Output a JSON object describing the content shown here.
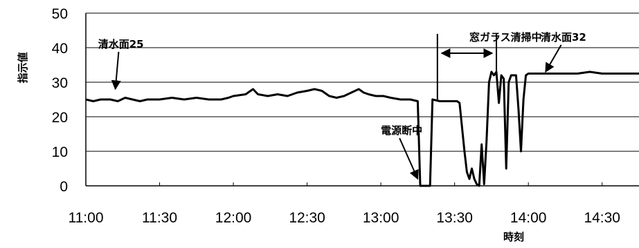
{
  "chart_data": {
    "type": "line",
    "title": "",
    "xlabel": "時刻",
    "ylabel": "指示値",
    "ylim": [
      0,
      50
    ],
    "yticks": [
      0,
      10,
      20,
      30,
      40,
      50
    ],
    "xlim_minutes": [
      660,
      885
    ],
    "xticks": [
      "11:00",
      "11:30",
      "12:00",
      "12:30",
      "13:00",
      "13:30",
      "14:00",
      "14:30"
    ],
    "grid": "horizontal",
    "legend": "none",
    "series": [
      {
        "color": "#000000",
        "points": [
          [
            "11:00",
            25
          ],
          [
            "11:03",
            24.5
          ],
          [
            "11:06",
            25
          ],
          [
            "11:10",
            25
          ],
          [
            "11:13",
            24.5
          ],
          [
            "11:16",
            25.5
          ],
          [
            "11:19",
            25
          ],
          [
            "11:22",
            24.5
          ],
          [
            "11:25",
            25
          ],
          [
            "11:30",
            25
          ],
          [
            "11:35",
            25.5
          ],
          [
            "11:40",
            25
          ],
          [
            "11:45",
            25.5
          ],
          [
            "11:50",
            25
          ],
          [
            "11:55",
            25
          ],
          [
            "11:58",
            25.5
          ],
          [
            "12:00",
            26
          ],
          [
            "12:05",
            26.5
          ],
          [
            "12:08",
            28
          ],
          [
            "12:10",
            26.5
          ],
          [
            "12:14",
            26
          ],
          [
            "12:18",
            26.5
          ],
          [
            "12:22",
            26
          ],
          [
            "12:26",
            27
          ],
          [
            "12:30",
            27.5
          ],
          [
            "12:33",
            28
          ],
          [
            "12:36",
            27.5
          ],
          [
            "12:39",
            26
          ],
          [
            "12:42",
            25.5
          ],
          [
            "12:45",
            26
          ],
          [
            "12:48",
            27
          ],
          [
            "12:51",
            28
          ],
          [
            "12:53",
            27
          ],
          [
            "12:55",
            26.5
          ],
          [
            "12:58",
            26
          ],
          [
            "13:01",
            26
          ],
          [
            "13:04",
            25.5
          ],
          [
            "13:08",
            25
          ],
          [
            "13:12",
            25
          ],
          [
            "13:15",
            24.5
          ],
          [
            "13:16",
            0
          ],
          [
            "13:20",
            0
          ],
          [
            "13:21",
            25
          ],
          [
            "13:24",
            24.5
          ],
          [
            "13:28",
            24.5
          ],
          [
            "13:31",
            24.5
          ],
          [
            "13:32",
            24
          ],
          [
            "13:34",
            10
          ],
          [
            "13:35",
            4
          ],
          [
            "13:36",
            2
          ],
          [
            "13:37",
            5
          ],
          [
            "13:38",
            2
          ],
          [
            "13:39",
            0.5
          ],
          [
            "13:40",
            0
          ],
          [
            "13:41",
            12
          ],
          [
            "13:42",
            0.5
          ],
          [
            "13:43",
            13
          ],
          [
            "13:44",
            30
          ],
          [
            "13:45",
            33
          ],
          [
            "13:46",
            32
          ],
          [
            "13:47",
            33
          ],
          [
            "13:48",
            24
          ],
          [
            "13:49",
            32
          ],
          [
            "13:50",
            31
          ],
          [
            "13:51",
            5
          ],
          [
            "13:52",
            30
          ],
          [
            "13:53",
            32
          ],
          [
            "13:55",
            32
          ],
          [
            "13:56",
            22
          ],
          [
            "13:57",
            10
          ],
          [
            "13:58",
            25
          ],
          [
            "13:59",
            32
          ],
          [
            "14:00",
            32.5
          ],
          [
            "14:05",
            32.5
          ],
          [
            "14:10",
            32.5
          ],
          [
            "14:15",
            32.5
          ],
          [
            "14:20",
            32.5
          ],
          [
            "14:25",
            33
          ],
          [
            "14:30",
            32.5
          ],
          [
            "14:35",
            32.5
          ],
          [
            "14:45",
            32.5
          ]
        ]
      }
    ],
    "annotations": [
      {
        "text": "清水面25",
        "x": "11:05",
        "y": 40,
        "arrow_to": [
          "11:12",
          28
        ]
      },
      {
        "text": "電源断中",
        "x": "13:00",
        "y": 15,
        "arrow_to": [
          "13:15",
          2
        ]
      },
      {
        "text": "窓ガラス清掃中",
        "x": "13:36",
        "y": 42,
        "span": [
          "13:23",
          "13:47"
        ]
      },
      {
        "text": "清水面32",
        "x": "14:05",
        "y": 42,
        "arrow_to": [
          "14:07",
          33
        ]
      }
    ]
  }
}
